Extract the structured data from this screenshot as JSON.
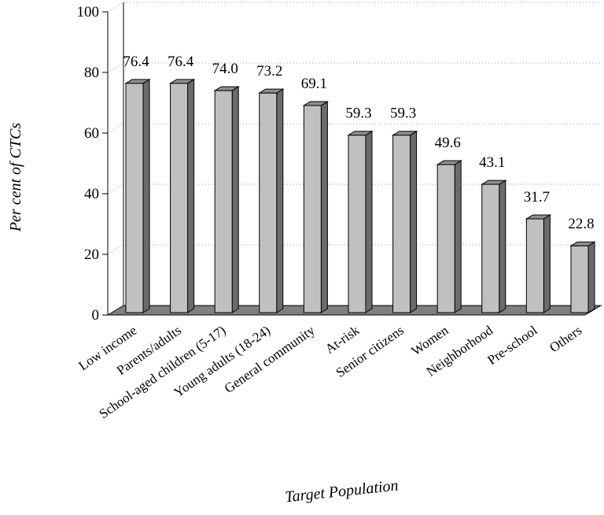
{
  "chart_data": {
    "type": "bar",
    "title": "",
    "xlabel": "Target Population",
    "ylabel": "Per cent of CTCs",
    "ylim": [
      0,
      100
    ],
    "yticks": [
      0,
      20,
      40,
      60,
      80,
      100
    ],
    "grid": true,
    "three_d": true,
    "categories": [
      "Low income",
      "Parents/adults",
      "School-aged children (5-17)",
      "Young adults (18-24)",
      "General community",
      "At-risk",
      "Senior citizens",
      "Women",
      "Neighborhood",
      "Pre-school",
      "Others"
    ],
    "values": [
      76.4,
      76.4,
      74.0,
      73.2,
      69.1,
      59.3,
      59.3,
      49.6,
      43.1,
      31.7,
      22.8
    ],
    "value_labels": [
      "76.4",
      "76.4",
      "74.0",
      "73.2",
      "69.1",
      "59.3",
      "59.3",
      "49.6",
      "43.1",
      "31.7",
      "22.8"
    ],
    "colors": {
      "bar_front": "#c0c0c0",
      "bar_side": "#6b6b6b",
      "bar_top": "#8f8f8f",
      "floor": "#7f7f7f",
      "grid": "#9a9a9a"
    }
  }
}
